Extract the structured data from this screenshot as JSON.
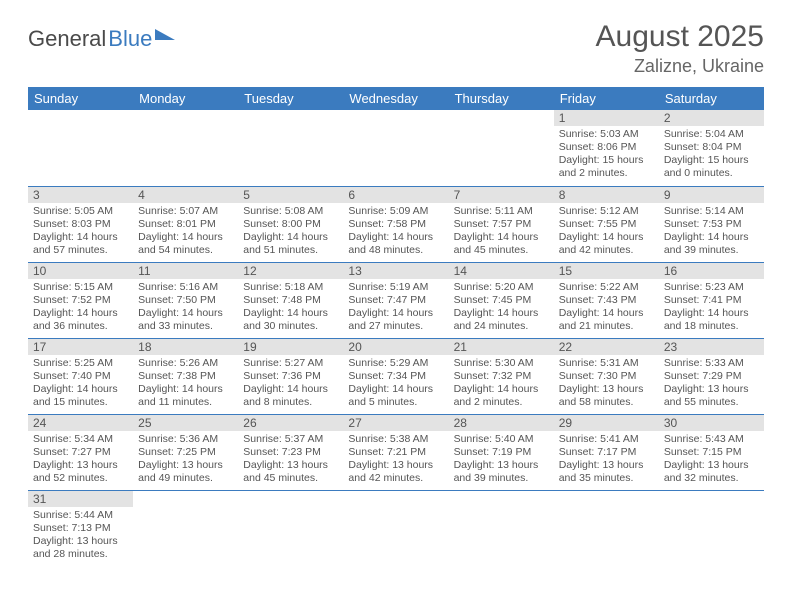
{
  "logo": {
    "word1": "General",
    "word2": "Blue"
  },
  "title": "August 2025",
  "location": "Zalizne, Ukraine",
  "colors": {
    "header_bg": "#3b7bbf",
    "header_text": "#ffffff",
    "daynum_bg": "#e3e3e3",
    "text": "#555555",
    "divider": "#3b7bbf"
  },
  "weekdays": [
    "Sunday",
    "Monday",
    "Tuesday",
    "Wednesday",
    "Thursday",
    "Friday",
    "Saturday"
  ],
  "weeks": [
    [
      null,
      null,
      null,
      null,
      null,
      {
        "n": "1",
        "sr": "5:03 AM",
        "ss": "8:06 PM",
        "dl": "15 hours and 2 minutes."
      },
      {
        "n": "2",
        "sr": "5:04 AM",
        "ss": "8:04 PM",
        "dl": "15 hours and 0 minutes."
      }
    ],
    [
      {
        "n": "3",
        "sr": "5:05 AM",
        "ss": "8:03 PM",
        "dl": "14 hours and 57 minutes."
      },
      {
        "n": "4",
        "sr": "5:07 AM",
        "ss": "8:01 PM",
        "dl": "14 hours and 54 minutes."
      },
      {
        "n": "5",
        "sr": "5:08 AM",
        "ss": "8:00 PM",
        "dl": "14 hours and 51 minutes."
      },
      {
        "n": "6",
        "sr": "5:09 AM",
        "ss": "7:58 PM",
        "dl": "14 hours and 48 minutes."
      },
      {
        "n": "7",
        "sr": "5:11 AM",
        "ss": "7:57 PM",
        "dl": "14 hours and 45 minutes."
      },
      {
        "n": "8",
        "sr": "5:12 AM",
        "ss": "7:55 PM",
        "dl": "14 hours and 42 minutes."
      },
      {
        "n": "9",
        "sr": "5:14 AM",
        "ss": "7:53 PM",
        "dl": "14 hours and 39 minutes."
      }
    ],
    [
      {
        "n": "10",
        "sr": "5:15 AM",
        "ss": "7:52 PM",
        "dl": "14 hours and 36 minutes."
      },
      {
        "n": "11",
        "sr": "5:16 AM",
        "ss": "7:50 PM",
        "dl": "14 hours and 33 minutes."
      },
      {
        "n": "12",
        "sr": "5:18 AM",
        "ss": "7:48 PM",
        "dl": "14 hours and 30 minutes."
      },
      {
        "n": "13",
        "sr": "5:19 AM",
        "ss": "7:47 PM",
        "dl": "14 hours and 27 minutes."
      },
      {
        "n": "14",
        "sr": "5:20 AM",
        "ss": "7:45 PM",
        "dl": "14 hours and 24 minutes."
      },
      {
        "n": "15",
        "sr": "5:22 AM",
        "ss": "7:43 PM",
        "dl": "14 hours and 21 minutes."
      },
      {
        "n": "16",
        "sr": "5:23 AM",
        "ss": "7:41 PM",
        "dl": "14 hours and 18 minutes."
      }
    ],
    [
      {
        "n": "17",
        "sr": "5:25 AM",
        "ss": "7:40 PM",
        "dl": "14 hours and 15 minutes."
      },
      {
        "n": "18",
        "sr": "5:26 AM",
        "ss": "7:38 PM",
        "dl": "14 hours and 11 minutes."
      },
      {
        "n": "19",
        "sr": "5:27 AM",
        "ss": "7:36 PM",
        "dl": "14 hours and 8 minutes."
      },
      {
        "n": "20",
        "sr": "5:29 AM",
        "ss": "7:34 PM",
        "dl": "14 hours and 5 minutes."
      },
      {
        "n": "21",
        "sr": "5:30 AM",
        "ss": "7:32 PM",
        "dl": "14 hours and 2 minutes."
      },
      {
        "n": "22",
        "sr": "5:31 AM",
        "ss": "7:30 PM",
        "dl": "13 hours and 58 minutes."
      },
      {
        "n": "23",
        "sr": "5:33 AM",
        "ss": "7:29 PM",
        "dl": "13 hours and 55 minutes."
      }
    ],
    [
      {
        "n": "24",
        "sr": "5:34 AM",
        "ss": "7:27 PM",
        "dl": "13 hours and 52 minutes."
      },
      {
        "n": "25",
        "sr": "5:36 AM",
        "ss": "7:25 PM",
        "dl": "13 hours and 49 minutes."
      },
      {
        "n": "26",
        "sr": "5:37 AM",
        "ss": "7:23 PM",
        "dl": "13 hours and 45 minutes."
      },
      {
        "n": "27",
        "sr": "5:38 AM",
        "ss": "7:21 PM",
        "dl": "13 hours and 42 minutes."
      },
      {
        "n": "28",
        "sr": "5:40 AM",
        "ss": "7:19 PM",
        "dl": "13 hours and 39 minutes."
      },
      {
        "n": "29",
        "sr": "5:41 AM",
        "ss": "7:17 PM",
        "dl": "13 hours and 35 minutes."
      },
      {
        "n": "30",
        "sr": "5:43 AM",
        "ss": "7:15 PM",
        "dl": "13 hours and 32 minutes."
      }
    ],
    [
      {
        "n": "31",
        "sr": "5:44 AM",
        "ss": "7:13 PM",
        "dl": "13 hours and 28 minutes."
      },
      null,
      null,
      null,
      null,
      null,
      null
    ]
  ],
  "labels": {
    "sunrise": "Sunrise:",
    "sunset": "Sunset:",
    "daylight": "Daylight:"
  }
}
